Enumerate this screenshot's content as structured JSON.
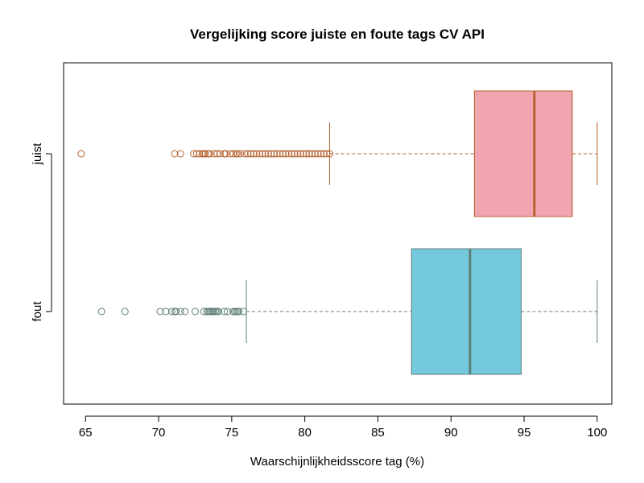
{
  "chart_data": {
    "type": "boxplot",
    "orientation": "horizontal",
    "title": "Vergelijking score juiste en foute tags CV API",
    "xlabel": "Waarschijnlijkheidsscore tag (%)",
    "ylabel": "",
    "xlim": [
      63.5,
      101
    ],
    "xticks": [
      65,
      70,
      75,
      80,
      85,
      90,
      95,
      100
    ],
    "grid": false,
    "series": [
      {
        "name": "fout",
        "whisker_low": 76.0,
        "q1": 87.3,
        "median": 91.3,
        "q3": 94.8,
        "whisker_high": 100.0,
        "fill": "#74cadc",
        "stroke": "#5f7f7a",
        "outliers": [
          66.1,
          67.7,
          70.1,
          70.5,
          70.9,
          71.1,
          71.2,
          71.5,
          71.8,
          72.5,
          73.1,
          73.3,
          73.4,
          73.5,
          73.6,
          73.7,
          73.8,
          73.9,
          74.0,
          74.1,
          74.5,
          74.7,
          75.1,
          75.2,
          75.3,
          75.4,
          75.5,
          75.8
        ]
      },
      {
        "name": "juist",
        "whisker_low": 81.7,
        "q1": 91.6,
        "median": 95.7,
        "q3": 98.3,
        "whisker_high": 100.0,
        "fill": "#f0a5b0",
        "stroke": "#b5622e",
        "outliers": [
          64.7,
          71.1,
          71.5,
          72.4,
          72.6,
          72.8,
          73.0,
          73.1,
          73.2,
          73.4,
          73.5,
          73.8,
          74.0,
          74.2,
          74.5,
          74.6,
          74.9,
          75.1,
          75.3,
          75.4,
          75.6,
          75.9,
          76.1,
          76.3,
          76.5,
          76.7,
          76.9,
          77.1,
          77.3,
          77.5,
          77.7,
          77.9,
          78.1,
          78.3,
          78.5,
          78.7,
          78.9,
          79.1,
          79.3,
          79.5,
          79.7,
          79.9,
          80.1,
          80.3,
          80.5,
          80.7,
          80.9,
          81.1,
          81.3,
          81.5,
          81.7
        ]
      }
    ]
  }
}
